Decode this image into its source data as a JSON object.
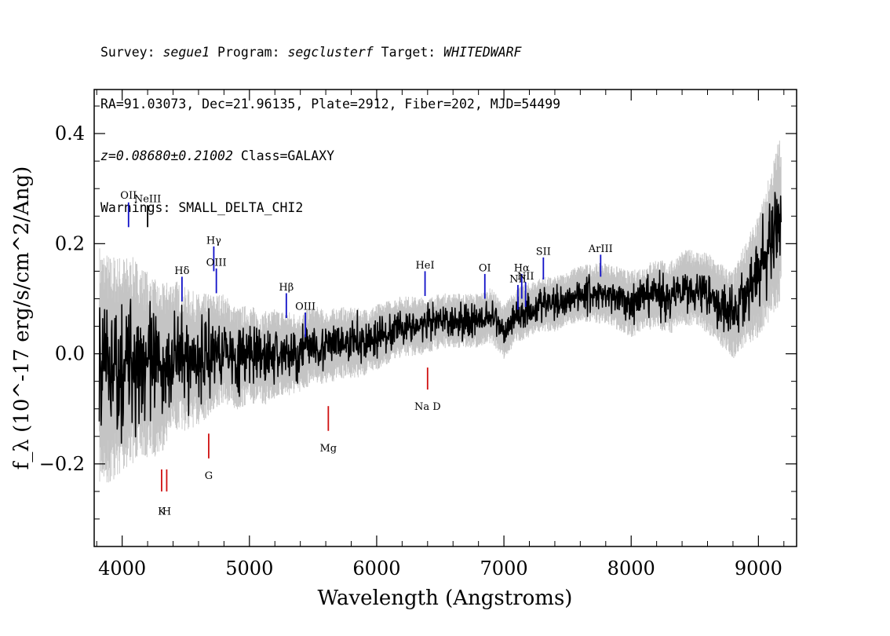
{
  "header": {
    "survey_label": "Survey:",
    "survey": "segue1",
    "program_label": "Program:",
    "program": "segclusterf",
    "target_label": "Target:",
    "target": "WHITEDWARF",
    "line2": "RA=91.03073, Dec=21.96135, Plate=2912, Fiber=202, MJD=54499",
    "redshift": "z=0.08680±0.21002",
    "class": "Class=GALAXY",
    "warnings": "Warnings: SMALL_DELTA_CHI2"
  },
  "chart_data": {
    "type": "line",
    "xlabel": "Wavelength (Angstroms)",
    "ylabel": "f_λ (10^-17 erg/s/cm^2/Ang)",
    "xlim": [
      3780,
      9300
    ],
    "ylim": [
      -0.35,
      0.48
    ],
    "xticks": [
      "4000",
      "5000",
      "6000",
      "7000",
      "8000",
      "9000"
    ],
    "xtick_values": [
      4000,
      5000,
      6000,
      7000,
      8000,
      9000
    ],
    "yticks": [
      "−0.2",
      "0.0",
      "0.2",
      "0.4"
    ],
    "ytick_values": [
      -0.2,
      0.0,
      0.2,
      0.4
    ],
    "series": [
      {
        "role": "flux",
        "color": "#000000",
        "x": [
          3820,
          3900,
          4000,
          4100,
          4200,
          4300,
          4400,
          4500,
          4600,
          4700,
          4800,
          4900,
          5000,
          5100,
          5200,
          5300,
          5400,
          5500,
          5600,
          5700,
          5800,
          5900,
          6000,
          6100,
          6200,
          6300,
          6400,
          6500,
          6600,
          6700,
          6800,
          6900,
          7000,
          7100,
          7200,
          7300,
          7400,
          7500,
          7600,
          7700,
          7800,
          7900,
          8000,
          8100,
          8200,
          8300,
          8400,
          8500,
          8600,
          8700,
          8800,
          8900,
          9000,
          9100,
          9180
        ],
        "y": [
          -0.02,
          -0.03,
          -0.02,
          -0.01,
          -0.02,
          -0.03,
          0.0,
          -0.01,
          -0.01,
          0.0,
          0.01,
          -0.01,
          0.0,
          -0.01,
          0.0,
          0.0,
          0.0,
          0.02,
          0.01,
          0.02,
          0.02,
          0.02,
          0.03,
          0.04,
          0.05,
          0.05,
          0.05,
          0.06,
          0.06,
          0.06,
          0.06,
          0.07,
          0.04,
          0.07,
          0.08,
          0.09,
          0.09,
          0.1,
          0.11,
          0.11,
          0.11,
          0.1,
          0.09,
          0.1,
          0.11,
          0.1,
          0.12,
          0.12,
          0.11,
          0.09,
          0.07,
          0.11,
          0.14,
          0.2,
          0.25
        ]
      },
      {
        "role": "noise",
        "color": "#c4c4c4",
        "x": [
          3820,
          4000,
          4200,
          4400,
          4600,
          4800,
          5000,
          5500,
          6000,
          6500,
          7000,
          7500,
          8000,
          8500,
          8800,
          9000,
          9180
        ],
        "y_err": [
          0.22,
          0.2,
          0.17,
          0.14,
          0.12,
          0.1,
          0.09,
          0.07,
          0.06,
          0.05,
          0.05,
          0.05,
          0.06,
          0.07,
          0.08,
          0.11,
          0.16
        ]
      }
    ],
    "emission_lines": [
      {
        "label": "OII",
        "x": 4050,
        "color": "#1010c8",
        "y0": 0.23,
        "y1": 0.275,
        "label_y": 0.282
      },
      {
        "label": "NeIII",
        "x": 4200,
        "color": "#000000",
        "y0": 0.23,
        "y1": 0.27,
        "label_y": 0.275
      },
      {
        "label": "Hδ",
        "x": 4470,
        "color": "#1010c8",
        "y0": 0.095,
        "y1": 0.14,
        "label_y": 0.145
      },
      {
        "label": "Hγ",
        "x": 4720,
        "color": "#1010c8",
        "y0": 0.15,
        "y1": 0.195,
        "label_y": 0.2
      },
      {
        "label": "OIII",
        "x": 4740,
        "color": "#1010c8",
        "y0": 0.11,
        "y1": 0.155,
        "label_y": 0.16
      },
      {
        "label": "Hβ",
        "x": 5290,
        "color": "#1010c8",
        "y0": 0.065,
        "y1": 0.11,
        "label_y": 0.115
      },
      {
        "label": "OIII",
        "x": 5440,
        "color": "#1010c8",
        "y0": 0.03,
        "y1": 0.075,
        "label_y": 0.08
      },
      {
        "label": "HeI",
        "x": 6380,
        "color": "#1010c8",
        "y0": 0.105,
        "y1": 0.15,
        "label_y": 0.155
      },
      {
        "label": "OI",
        "x": 6850,
        "color": "#1010c8",
        "y0": 0.1,
        "y1": 0.145,
        "label_y": 0.15
      },
      {
        "label": "NII",
        "x": 7110,
        "color": "#1010c8",
        "y0": 0.08,
        "y1": 0.125,
        "label_y": 0.13
      },
      {
        "label": "Hα",
        "x": 7140,
        "color": "#1010c8",
        "y0": 0.1,
        "y1": 0.145,
        "label_y": 0.15
      },
      {
        "label": "NII",
        "x": 7170,
        "color": "#1010c8",
        "y0": 0.085,
        "y1": 0.13,
        "label_y": 0.135
      },
      {
        "label": "SII",
        "x": 7310,
        "color": "#1010c8",
        "y0": 0.135,
        "y1": 0.175,
        "label_y": 0.18
      },
      {
        "label": "ArIII",
        "x": 7760,
        "color": "#1010c8",
        "y0": 0.14,
        "y1": 0.18,
        "label_y": 0.185
      }
    ],
    "absorption_lines": [
      {
        "label": "K",
        "x": 4310,
        "color": "#d01010",
        "y0": -0.25,
        "y1": -0.21,
        "label_y": -0.275
      },
      {
        "label": "H",
        "x": 4350,
        "color": "#d01010",
        "y0": -0.25,
        "y1": -0.21,
        "label_y": -0.275
      },
      {
        "label": "G",
        "x": 4680,
        "color": "#d01010",
        "y0": -0.19,
        "y1": -0.145,
        "label_y": -0.21
      },
      {
        "label": "Mg",
        "x": 5620,
        "color": "#d01010",
        "y0": -0.14,
        "y1": -0.095,
        "label_y": -0.16
      },
      {
        "label": "Na D",
        "x": 6400,
        "color": "#d01010",
        "y0": -0.065,
        "y1": -0.025,
        "label_y": -0.085
      }
    ]
  }
}
